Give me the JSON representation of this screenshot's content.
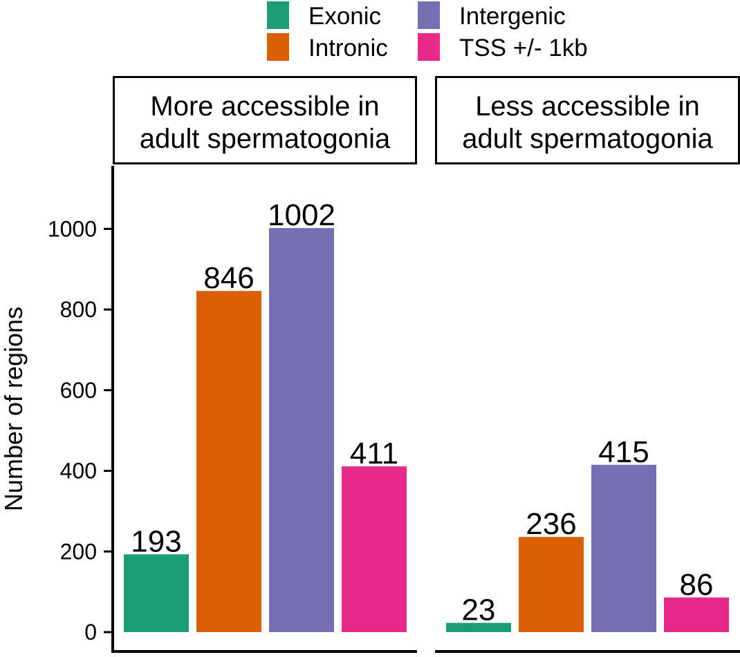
{
  "chart_data": {
    "type": "bar",
    "categories": [
      "Exonic",
      "Intronic",
      "Intergenic",
      "TSS +/- 1kb"
    ],
    "colors": {
      "Exonic": "#1b9e77",
      "Intronic": "#d95f02",
      "Intergenic": "#7570b3",
      "TSS +/- 1kb": "#e7298a"
    },
    "legend": {
      "placement": "top",
      "items": [
        "Exonic",
        "Intronic",
        "Intergenic",
        "TSS +/- 1kb"
      ]
    },
    "ylabel": "Number of regions",
    "ylim": [
      0,
      1130
    ],
    "yticks": [
      0,
      200,
      400,
      600,
      800,
      1000
    ],
    "grid": false,
    "panels": [
      {
        "title_lines": [
          "More accessible in",
          "adult spermatogonia"
        ],
        "values": [
          193,
          846,
          1002,
          411
        ]
      },
      {
        "title_lines": [
          "Less accessible in",
          "adult spermatogonia"
        ],
        "values": [
          23,
          236,
          415,
          86
        ]
      }
    ]
  }
}
